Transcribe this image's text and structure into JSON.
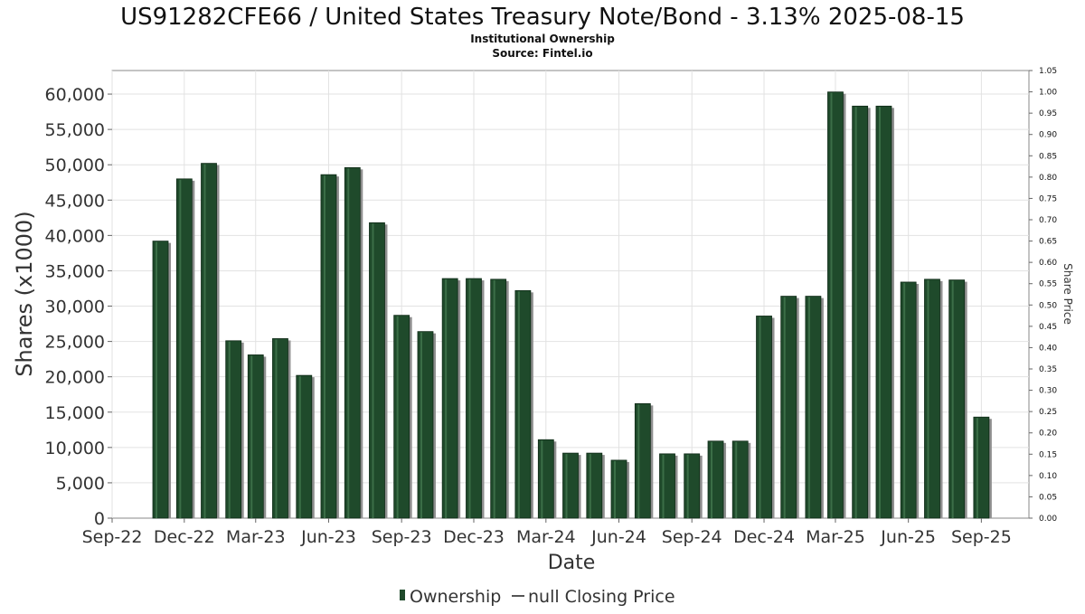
{
  "chart_data": {
    "type": "bar",
    "title": "US91282CFE66 / United States Treasury Note/Bond - 3.13% 2025-08-15",
    "subtitle": "Institutional Ownership",
    "source": "Source: Fintel.io",
    "xlabel": "Date",
    "ylabel": "Shares (x1000)",
    "y2label": "Share Price",
    "ylim": [
      0,
      63333
    ],
    "y2lim": [
      0,
      1.05
    ],
    "yticks": [
      0,
      5000,
      10000,
      15000,
      20000,
      25000,
      30000,
      35000,
      40000,
      45000,
      50000,
      55000,
      60000
    ],
    "ytick_labels": [
      "0",
      "5,000",
      "10,000",
      "15,000",
      "20,000",
      "25,000",
      "30,000",
      "35,000",
      "40,000",
      "45,000",
      "50,000",
      "55,000",
      "60,000"
    ],
    "y2ticks": [
      0.0,
      0.05,
      0.1,
      0.15,
      0.2,
      0.25,
      0.3,
      0.35,
      0.4,
      0.45,
      0.5,
      0.55,
      0.6,
      0.65,
      0.7,
      0.75,
      0.8,
      0.85,
      0.9,
      0.95,
      1.0,
      1.05
    ],
    "y2tick_labels": [
      "0.00",
      "0.05",
      "0.10",
      "0.15",
      "0.20",
      "0.25",
      "0.30",
      "0.35",
      "0.40",
      "0.45",
      "0.50",
      "0.55",
      "0.60",
      "0.65",
      "0.70",
      "0.75",
      "0.80",
      "0.85",
      "0.90",
      "0.95",
      "1.00",
      "1.05"
    ],
    "xlim": [
      "2022-09-01",
      "2025-10-31"
    ],
    "xticks": [
      {
        "date": "2022-09-01",
        "label": "Sep-22"
      },
      {
        "date": "2022-12-01",
        "label": "Dec-22"
      },
      {
        "date": "2023-03-01",
        "label": "Mar-23"
      },
      {
        "date": "2023-06-01",
        "label": "Jun-23"
      },
      {
        "date": "2023-09-01",
        "label": "Sep-23"
      },
      {
        "date": "2023-12-01",
        "label": "Dec-23"
      },
      {
        "date": "2024-03-01",
        "label": "Mar-24"
      },
      {
        "date": "2024-06-01",
        "label": "Jun-24"
      },
      {
        "date": "2024-09-01",
        "label": "Sep-24"
      },
      {
        "date": "2024-12-01",
        "label": "Dec-24"
      },
      {
        "date": "2025-03-01",
        "label": "Mar-25"
      },
      {
        "date": "2025-06-01",
        "label": "Jun-25"
      },
      {
        "date": "2025-09-01",
        "label": "Sep-25"
      }
    ],
    "grid": true,
    "legend_position": "bottom",
    "series": [
      {
        "name": "Ownership",
        "color": "#1f4a2b",
        "points": [
          {
            "x": "2022-11-01",
            "y": 39200
          },
          {
            "x": "2022-12-01",
            "y": 48000
          },
          {
            "x": "2023-01-01",
            "y": 50200
          },
          {
            "x": "2023-02-01",
            "y": 25100
          },
          {
            "x": "2023-03-01",
            "y": 23100
          },
          {
            "x": "2023-04-01",
            "y": 25400
          },
          {
            "x": "2023-05-01",
            "y": 20200
          },
          {
            "x": "2023-06-01",
            "y": 48600
          },
          {
            "x": "2023-07-01",
            "y": 49600
          },
          {
            "x": "2023-08-01",
            "y": 41800
          },
          {
            "x": "2023-09-01",
            "y": 28700
          },
          {
            "x": "2023-10-01",
            "y": 26400
          },
          {
            "x": "2023-11-01",
            "y": 33900
          },
          {
            "x": "2023-12-01",
            "y": 33900
          },
          {
            "x": "2024-01-01",
            "y": 33800
          },
          {
            "x": "2024-02-01",
            "y": 32200
          },
          {
            "x": "2024-03-01",
            "y": 11100
          },
          {
            "x": "2024-04-01",
            "y": 9200
          },
          {
            "x": "2024-05-01",
            "y": 9200
          },
          {
            "x": "2024-06-01",
            "y": 8200
          },
          {
            "x": "2024-07-01",
            "y": 16200
          },
          {
            "x": "2024-08-01",
            "y": 9100
          },
          {
            "x": "2024-09-01",
            "y": 9100
          },
          {
            "x": "2024-10-01",
            "y": 10900
          },
          {
            "x": "2024-11-01",
            "y": 10900
          },
          {
            "x": "2024-12-01",
            "y": 28600
          },
          {
            "x": "2025-01-01",
            "y": 31400
          },
          {
            "x": "2025-02-01",
            "y": 31400
          },
          {
            "x": "2025-03-01",
            "y": 60300
          },
          {
            "x": "2025-04-01",
            "y": 58300
          },
          {
            "x": "2025-05-01",
            "y": 58300
          },
          {
            "x": "2025-06-01",
            "y": 33400
          },
          {
            "x": "2025-07-01",
            "y": 33800
          },
          {
            "x": "2025-08-01",
            "y": 33700
          },
          {
            "x": "2025-09-01",
            "y": 14300
          }
        ]
      },
      {
        "name": "null Closing Price",
        "color": "#555555",
        "points": []
      }
    ]
  }
}
